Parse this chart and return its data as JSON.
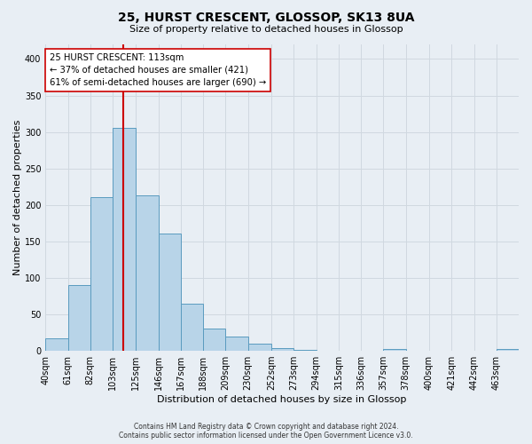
{
  "title": "25, HURST CRESCENT, GLOSSOP, SK13 8UA",
  "subtitle": "Size of property relative to detached houses in Glossop",
  "xlabel": "Distribution of detached houses by size in Glossop",
  "ylabel": "Number of detached properties",
  "bar_values": [
    17,
    90,
    211,
    305,
    213,
    161,
    64,
    31,
    20,
    10,
    4,
    1,
    0,
    0,
    0,
    3,
    0,
    0,
    0,
    0,
    2
  ],
  "bin_labels": [
    "40sqm",
    "61sqm",
    "82sqm",
    "103sqm",
    "125sqm",
    "146sqm",
    "167sqm",
    "188sqm",
    "209sqm",
    "230sqm",
    "252sqm",
    "273sqm",
    "294sqm",
    "315sqm",
    "336sqm",
    "357sqm",
    "378sqm",
    "400sqm",
    "421sqm",
    "442sqm",
    "463sqm"
  ],
  "bin_edges": [
    40,
    61,
    82,
    103,
    125,
    146,
    167,
    188,
    209,
    230,
    252,
    273,
    294,
    315,
    336,
    357,
    378,
    400,
    421,
    442,
    463,
    484
  ],
  "bar_color": "#b8d4e8",
  "bar_edge_color": "#5a9bbf",
  "red_line_x": 113,
  "red_line_color": "#cc0000",
  "ylim": [
    0,
    420
  ],
  "yticks": [
    0,
    50,
    100,
    150,
    200,
    250,
    300,
    350,
    400
  ],
  "annotation_title": "25 HURST CRESCENT: 113sqm",
  "annotation_line1": "← 37% of detached houses are smaller (421)",
  "annotation_line2": "61% of semi-detached houses are larger (690) →",
  "annotation_box_color": "#ffffff",
  "annotation_box_edge_color": "#cc0000",
  "grid_color": "#d0d8e0",
  "background_color": "#e8eef4",
  "footer1": "Contains HM Land Registry data © Crown copyright and database right 2024.",
  "footer2": "Contains public sector information licensed under the Open Government Licence v3.0."
}
